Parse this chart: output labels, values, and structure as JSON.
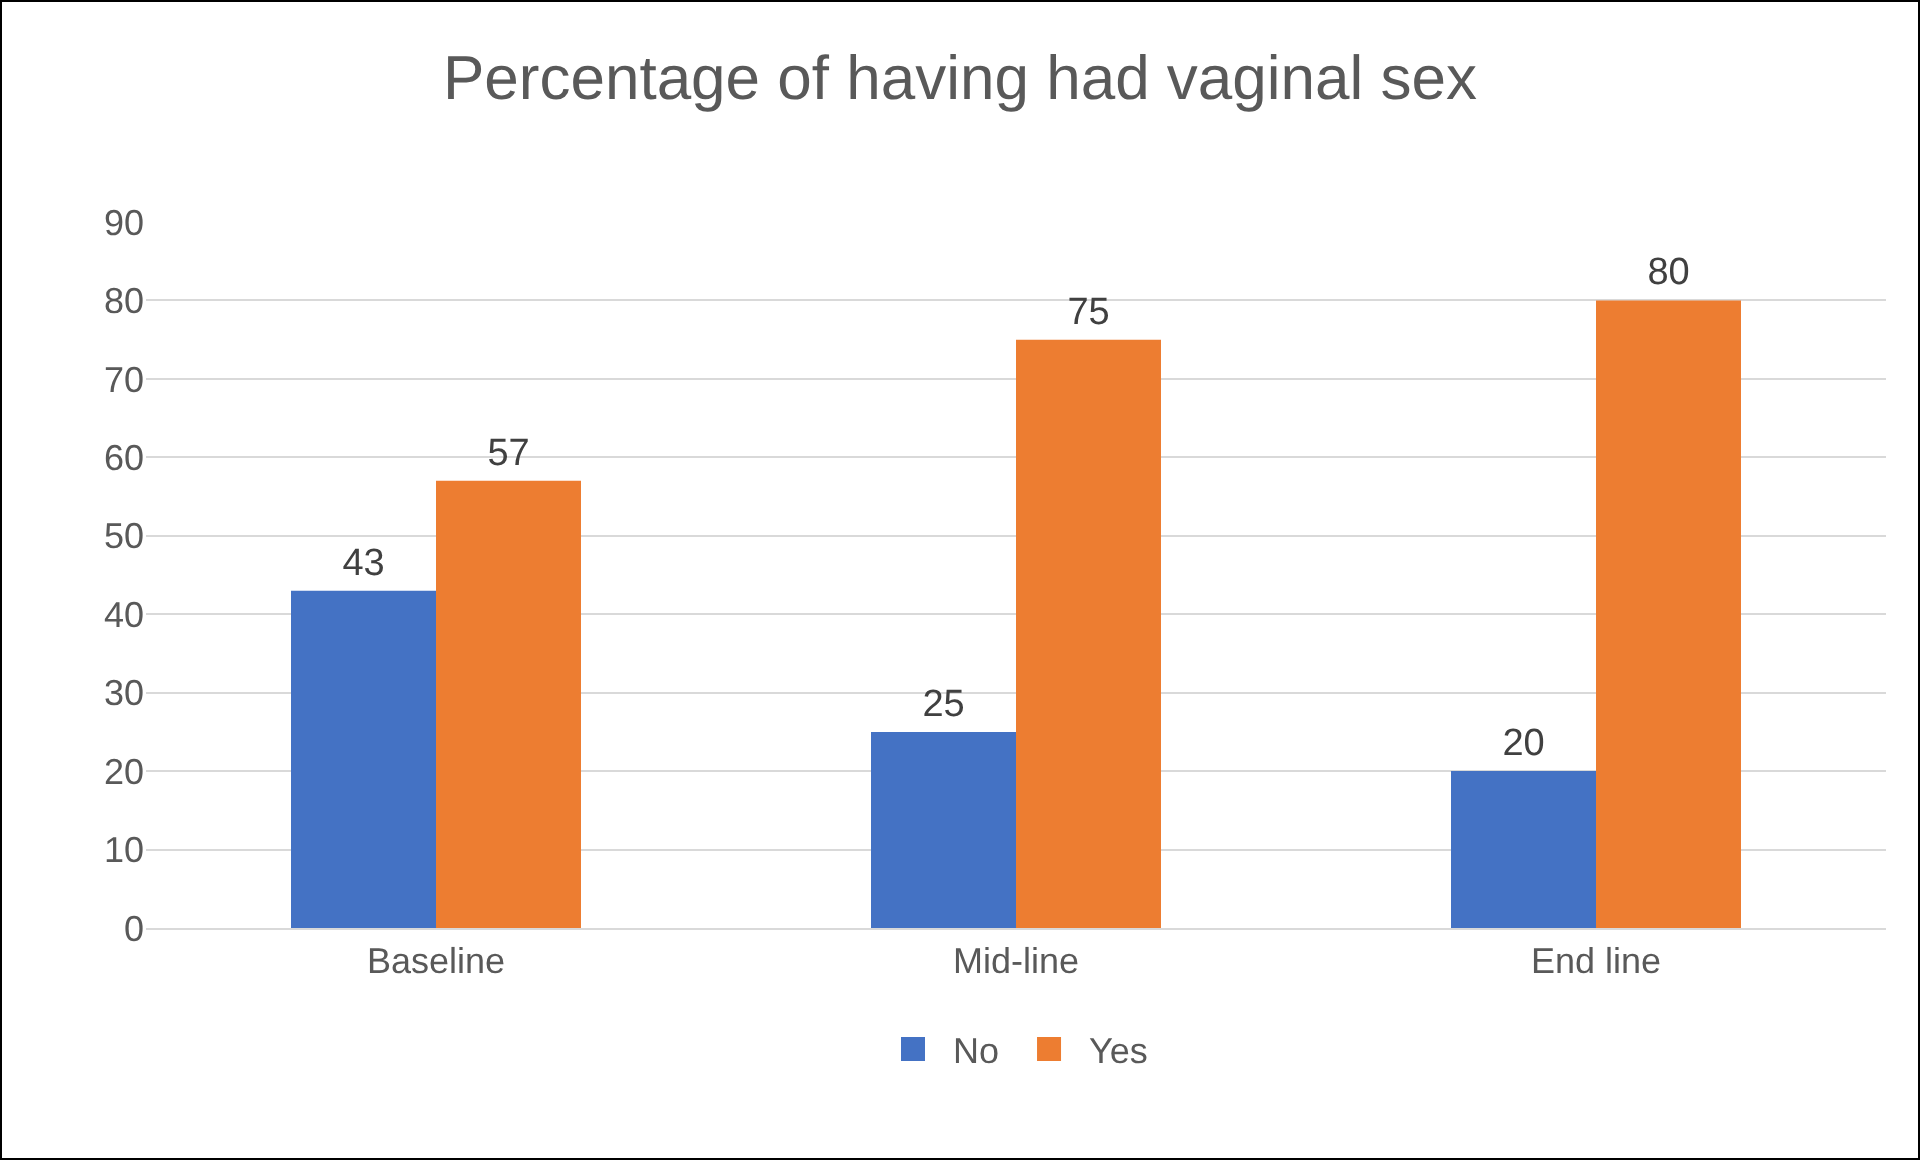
{
  "chart_data": {
    "type": "bar",
    "title": "Percentage of having had vaginal sex",
    "categories": [
      "Baseline",
      "Mid-line",
      "End line"
    ],
    "series": [
      {
        "name": "No",
        "color": "#4472c4",
        "values": [
          43,
          25,
          20
        ]
      },
      {
        "name": "Yes",
        "color": "#ed7d31",
        "values": [
          57,
          75,
          80
        ]
      }
    ],
    "ylim": [
      0,
      90
    ],
    "yticks": [
      0,
      10,
      20,
      30,
      40,
      50,
      60,
      70,
      80,
      90
    ],
    "grid": "y",
    "legend": "bottom",
    "data_labels": true
  }
}
